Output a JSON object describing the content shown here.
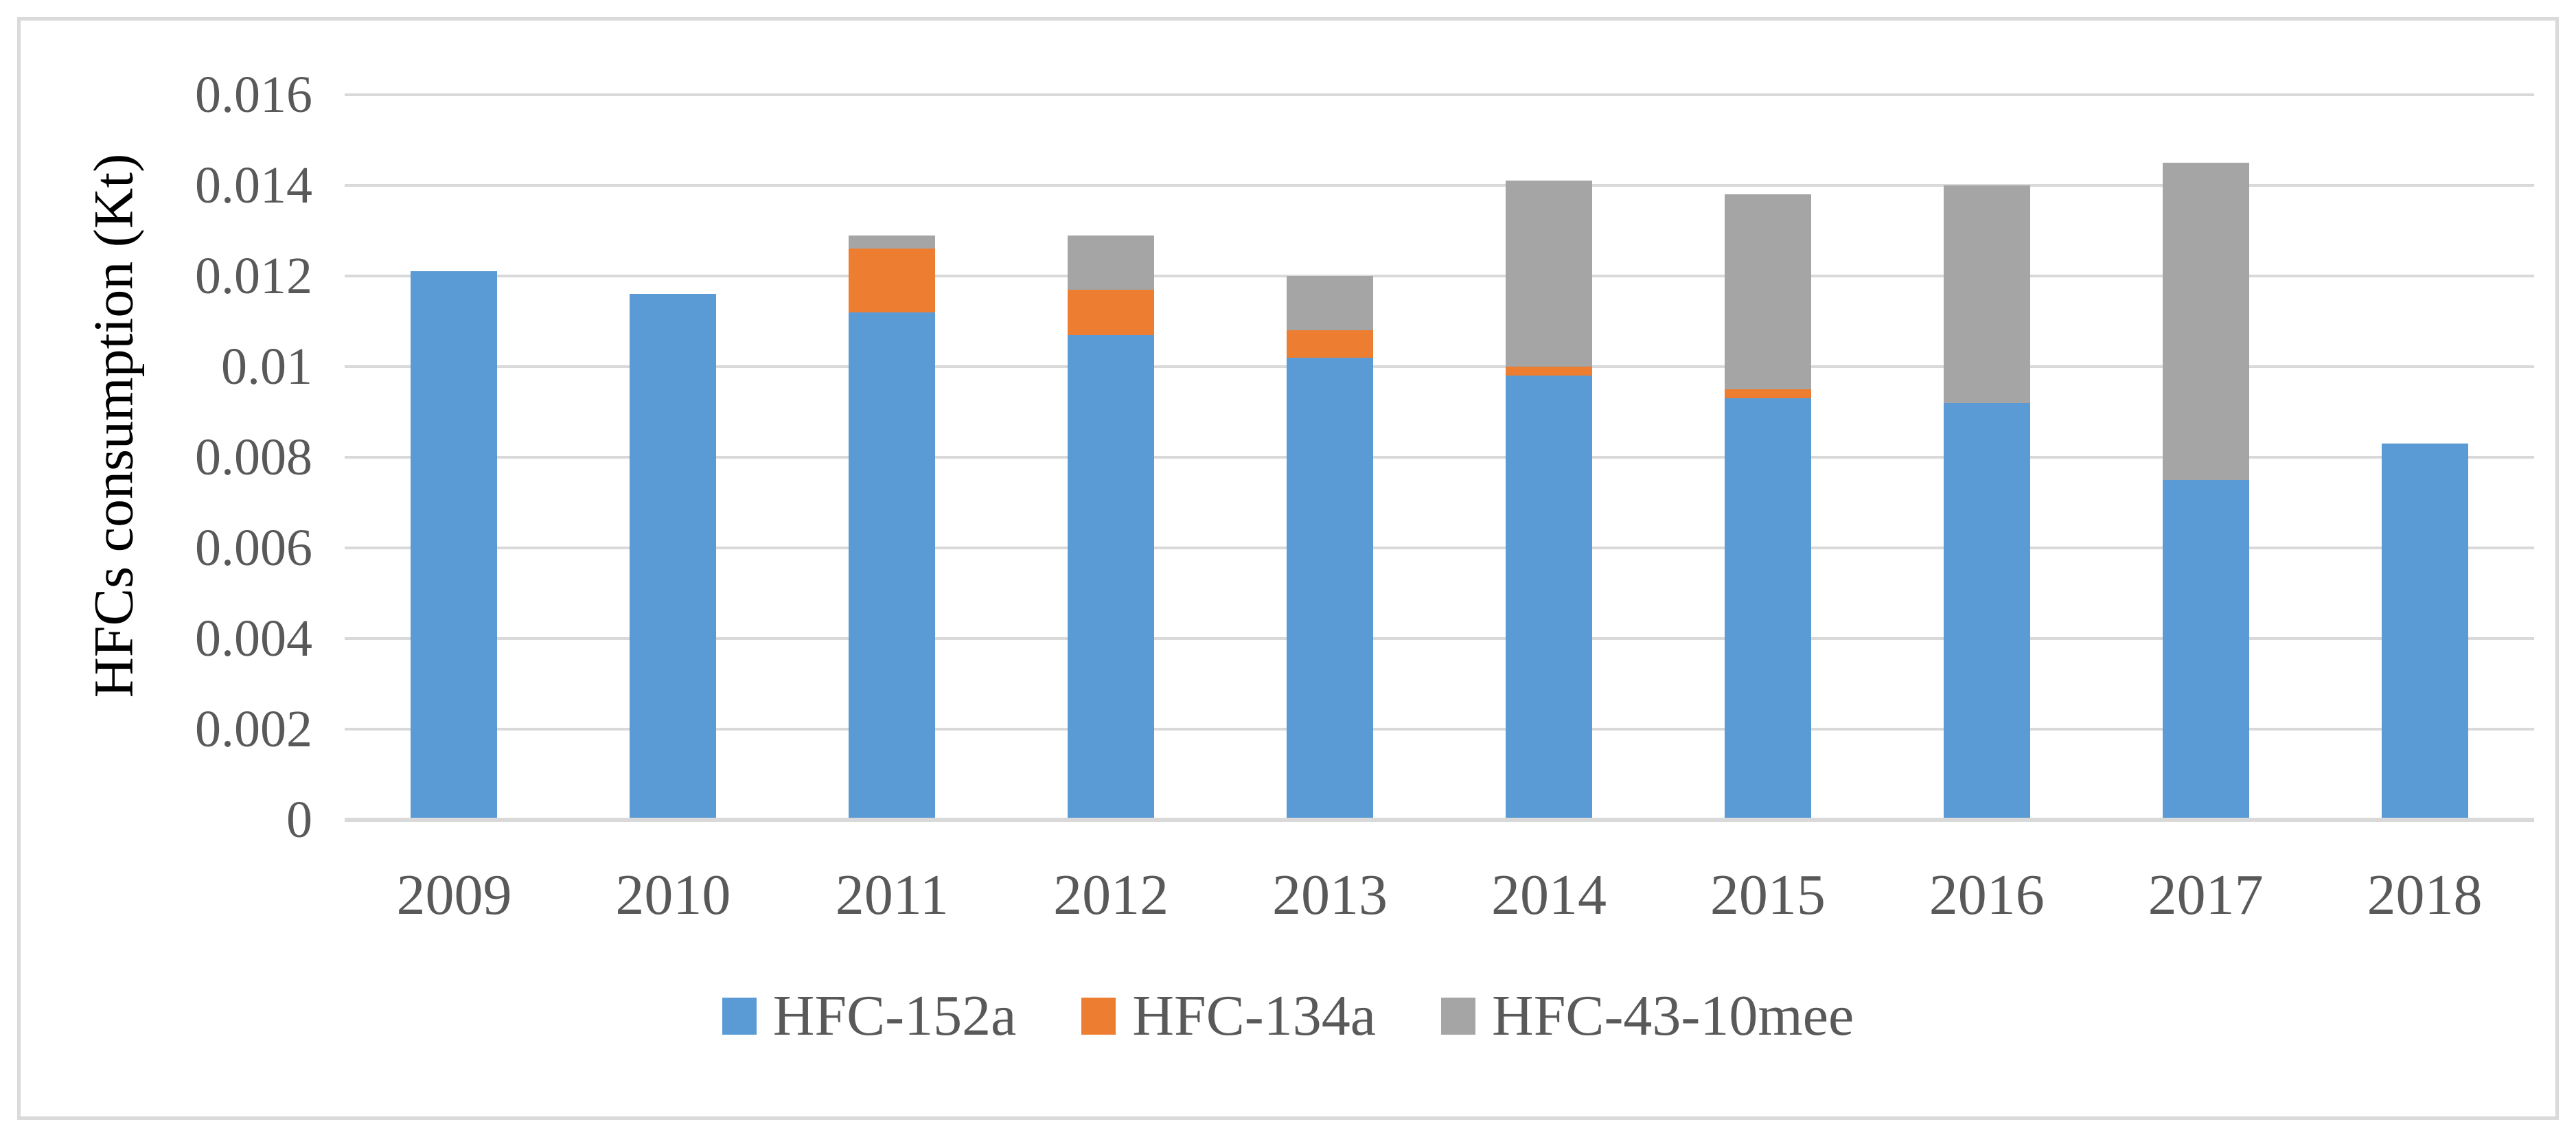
{
  "figure": {
    "background": "#ffffff",
    "border_color": "#dadada"
  },
  "chart_data": {
    "type": "bar",
    "stacked": true,
    "title": "",
    "xlabel": "",
    "ylabel": "HFCs consumption (Kt)",
    "categories": [
      "2009",
      "2010",
      "2011",
      "2012",
      "2013",
      "2014",
      "2015",
      "2016",
      "2017",
      "2018"
    ],
    "series": [
      {
        "name": "HFC-152a",
        "color": "#5B9BD5",
        "values": [
          0.0121,
          0.0116,
          0.0112,
          0.0107,
          0.0102,
          0.0098,
          0.0093,
          0.0092,
          0.0075,
          0.0083
        ]
      },
      {
        "name": "HFC-134a",
        "color": "#ED7D31",
        "values": [
          0,
          0,
          0.0014,
          0.001,
          0.0006,
          0.0002,
          0.0002,
          0,
          0,
          0
        ]
      },
      {
        "name": "HFC-43-10mee",
        "color": "#A5A5A5",
        "values": [
          0,
          0,
          0.0003,
          0.0012,
          0.0012,
          0.0041,
          0.0043,
          0.0048,
          0.007,
          0
        ]
      }
    ],
    "ylim": [
      0,
      0.016
    ],
    "ytick_values": [
      0,
      0.002,
      0.004,
      0.006,
      0.008,
      0.01,
      0.012,
      0.014,
      0.016
    ],
    "ytick_labels": [
      "0",
      "0.002",
      "0.004",
      "0.006",
      "0.008",
      "0.01",
      "0.012",
      "0.014",
      "0.016"
    ],
    "grid": true,
    "gridline_color": "#D9D9D9",
    "axis_line_color": "#D9D9D9",
    "axis_text_color": "#595959",
    "legend_position": "bottom"
  }
}
